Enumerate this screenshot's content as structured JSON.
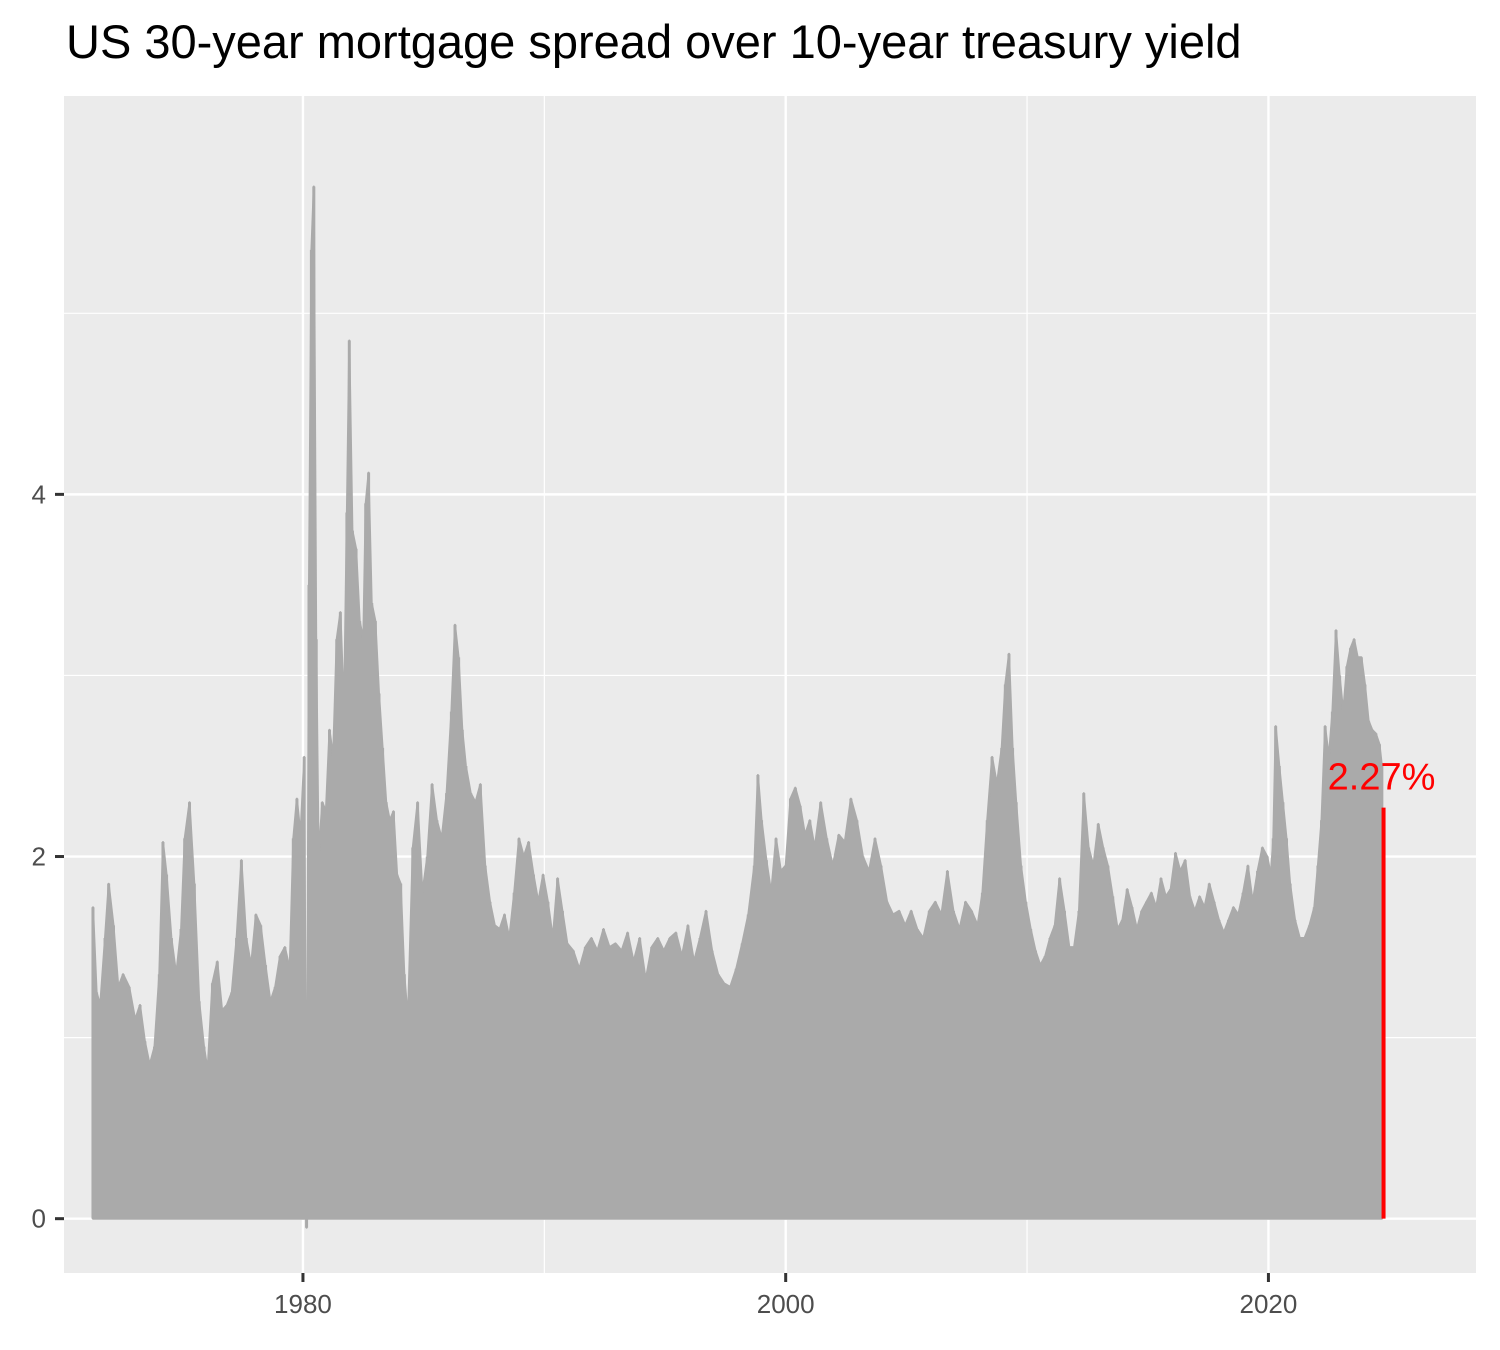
{
  "chart_data": {
    "type": "bar",
    "title": "US 30-year mortgage spread over 10-year treasury yield",
    "xlabel": "",
    "ylabel": "",
    "xlim": [
      1970.1,
      2028.6
    ],
    "ylim": [
      -0.3,
      6.2
    ],
    "grid": true,
    "legend": "none",
    "x_ticks": [
      1980,
      2000,
      2020
    ],
    "x_tick_labels": [
      "1980",
      "2000",
      "2020"
    ],
    "y_ticks": [
      0,
      2,
      4
    ],
    "y_tick_labels": [
      "0",
      "2",
      "4"
    ],
    "colors": {
      "panel": "#ebebeb",
      "grid": "#ffffff",
      "bars": "#aaaaaa",
      "highlight": "#ff0000",
      "ticks": "#333333"
    },
    "series": [
      {
        "values": [
          [
            1971.3,
            1.72
          ],
          [
            1971.45,
            1.25
          ],
          [
            1971.6,
            1.18
          ],
          [
            1971.8,
            1.55
          ],
          [
            1971.95,
            1.85
          ],
          [
            1972.15,
            1.62
          ],
          [
            1972.35,
            1.28
          ],
          [
            1972.55,
            1.35
          ],
          [
            1972.8,
            1.28
          ],
          [
            1973.05,
            1.1
          ],
          [
            1973.25,
            1.18
          ],
          [
            1973.45,
            0.98
          ],
          [
            1973.65,
            0.85
          ],
          [
            1973.85,
            0.95
          ],
          [
            1974.05,
            1.35
          ],
          [
            1974.2,
            2.08
          ],
          [
            1974.35,
            1.9
          ],
          [
            1974.55,
            1.55
          ],
          [
            1974.75,
            1.35
          ],
          [
            1974.95,
            1.6
          ],
          [
            1975.1,
            2.1
          ],
          [
            1975.3,
            2.3
          ],
          [
            1975.5,
            1.85
          ],
          [
            1975.7,
            1.2
          ],
          [
            1975.9,
            0.95
          ],
          [
            1976.05,
            0.82
          ],
          [
            1976.25,
            1.3
          ],
          [
            1976.45,
            1.42
          ],
          [
            1976.65,
            1.15
          ],
          [
            1976.85,
            1.18
          ],
          [
            1977.05,
            1.25
          ],
          [
            1977.25,
            1.55
          ],
          [
            1977.45,
            1.98
          ],
          [
            1977.65,
            1.55
          ],
          [
            1977.85,
            1.4
          ],
          [
            1978.05,
            1.68
          ],
          [
            1978.25,
            1.62
          ],
          [
            1978.45,
            1.4
          ],
          [
            1978.65,
            1.2
          ],
          [
            1978.85,
            1.28
          ],
          [
            1979.05,
            1.45
          ],
          [
            1979.25,
            1.5
          ],
          [
            1979.45,
            1.38
          ],
          [
            1979.6,
            2.1
          ],
          [
            1979.75,
            2.32
          ],
          [
            1979.9,
            2.12
          ],
          [
            1980.05,
            2.55
          ],
          [
            1980.15,
            -0.05
          ],
          [
            1980.25,
            3.5
          ],
          [
            1980.35,
            5.35
          ],
          [
            1980.45,
            5.7
          ],
          [
            1980.55,
            3.2
          ],
          [
            1980.65,
            2.0
          ],
          [
            1980.8,
            2.3
          ],
          [
            1980.95,
            2.25
          ],
          [
            1981.1,
            2.7
          ],
          [
            1981.25,
            2.55
          ],
          [
            1981.4,
            3.2
          ],
          [
            1981.55,
            3.35
          ],
          [
            1981.7,
            2.8
          ],
          [
            1981.82,
            3.9
          ],
          [
            1981.92,
            4.85
          ],
          [
            1982.05,
            3.8
          ],
          [
            1982.2,
            3.7
          ],
          [
            1982.35,
            3.3
          ],
          [
            1982.5,
            3.2
          ],
          [
            1982.6,
            3.95
          ],
          [
            1982.72,
            4.12
          ],
          [
            1982.85,
            3.4
          ],
          [
            1983.0,
            3.3
          ],
          [
            1983.15,
            2.9
          ],
          [
            1983.3,
            2.6
          ],
          [
            1983.45,
            2.3
          ],
          [
            1983.6,
            2.2
          ],
          [
            1983.75,
            2.25
          ],
          [
            1983.9,
            1.9
          ],
          [
            1984.05,
            1.85
          ],
          [
            1984.2,
            1.35
          ],
          [
            1984.35,
            1.1
          ],
          [
            1984.55,
            2.05
          ],
          [
            1984.75,
            2.3
          ],
          [
            1984.95,
            1.8
          ],
          [
            1985.15,
            2.0
          ],
          [
            1985.35,
            2.4
          ],
          [
            1985.55,
            2.2
          ],
          [
            1985.75,
            2.1
          ],
          [
            1985.95,
            2.35
          ],
          [
            1986.15,
            2.8
          ],
          [
            1986.3,
            3.28
          ],
          [
            1986.45,
            3.1
          ],
          [
            1986.6,
            2.7
          ],
          [
            1986.75,
            2.5
          ],
          [
            1986.95,
            2.35
          ],
          [
            1987.15,
            2.3
          ],
          [
            1987.35,
            2.4
          ],
          [
            1987.55,
            1.95
          ],
          [
            1987.75,
            1.75
          ],
          [
            1987.95,
            1.62
          ],
          [
            1988.15,
            1.6
          ],
          [
            1988.35,
            1.68
          ],
          [
            1988.55,
            1.55
          ],
          [
            1988.75,
            1.8
          ],
          [
            1988.95,
            2.1
          ],
          [
            1989.15,
            2.0
          ],
          [
            1989.35,
            2.08
          ],
          [
            1989.55,
            1.9
          ],
          [
            1989.75,
            1.75
          ],
          [
            1989.95,
            1.9
          ],
          [
            1990.15,
            1.75
          ],
          [
            1990.35,
            1.55
          ],
          [
            1990.55,
            1.88
          ],
          [
            1990.75,
            1.7
          ],
          [
            1990.95,
            1.52
          ],
          [
            1991.2,
            1.48
          ],
          [
            1991.45,
            1.38
          ],
          [
            1991.7,
            1.5
          ],
          [
            1991.95,
            1.55
          ],
          [
            1992.2,
            1.48
          ],
          [
            1992.45,
            1.6
          ],
          [
            1992.7,
            1.5
          ],
          [
            1992.95,
            1.52
          ],
          [
            1993.2,
            1.48
          ],
          [
            1993.45,
            1.58
          ],
          [
            1993.7,
            1.42
          ],
          [
            1993.95,
            1.55
          ],
          [
            1994.2,
            1.32
          ],
          [
            1994.45,
            1.5
          ],
          [
            1994.7,
            1.55
          ],
          [
            1994.95,
            1.48
          ],
          [
            1995.2,
            1.55
          ],
          [
            1995.45,
            1.58
          ],
          [
            1995.7,
            1.45
          ],
          [
            1995.95,
            1.62
          ],
          [
            1996.2,
            1.42
          ],
          [
            1996.45,
            1.55
          ],
          [
            1996.7,
            1.7
          ],
          [
            1996.95,
            1.48
          ],
          [
            1997.2,
            1.35
          ],
          [
            1997.45,
            1.3
          ],
          [
            1997.7,
            1.28
          ],
          [
            1997.95,
            1.38
          ],
          [
            1998.2,
            1.52
          ],
          [
            1998.45,
            1.68
          ],
          [
            1998.7,
            1.95
          ],
          [
            1998.85,
            2.45
          ],
          [
            1999.0,
            2.2
          ],
          [
            1999.2,
            1.98
          ],
          [
            1999.4,
            1.8
          ],
          [
            1999.6,
            2.1
          ],
          [
            1999.8,
            1.92
          ],
          [
            2000.0,
            1.95
          ],
          [
            2000.2,
            2.32
          ],
          [
            2000.4,
            2.38
          ],
          [
            2000.6,
            2.28
          ],
          [
            2000.8,
            2.12
          ],
          [
            2001.0,
            2.2
          ],
          [
            2001.2,
            2.05
          ],
          [
            2001.45,
            2.3
          ],
          [
            2001.7,
            2.1
          ],
          [
            2001.95,
            1.95
          ],
          [
            2002.2,
            2.12
          ],
          [
            2002.45,
            2.08
          ],
          [
            2002.7,
            2.32
          ],
          [
            2002.95,
            2.2
          ],
          [
            2003.2,
            2.0
          ],
          [
            2003.45,
            1.92
          ],
          [
            2003.7,
            2.1
          ],
          [
            2003.95,
            1.95
          ],
          [
            2004.2,
            1.75
          ],
          [
            2004.45,
            1.68
          ],
          [
            2004.7,
            1.7
          ],
          [
            2004.95,
            1.62
          ],
          [
            2005.2,
            1.7
          ],
          [
            2005.45,
            1.6
          ],
          [
            2005.7,
            1.55
          ],
          [
            2005.95,
            1.7
          ],
          [
            2006.2,
            1.75
          ],
          [
            2006.45,
            1.68
          ],
          [
            2006.7,
            1.92
          ],
          [
            2006.95,
            1.7
          ],
          [
            2007.2,
            1.6
          ],
          [
            2007.45,
            1.75
          ],
          [
            2007.7,
            1.7
          ],
          [
            2007.95,
            1.62
          ],
          [
            2008.15,
            1.8
          ],
          [
            2008.35,
            2.2
          ],
          [
            2008.55,
            2.55
          ],
          [
            2008.75,
            2.4
          ],
          [
            2008.95,
            2.6
          ],
          [
            2009.1,
            2.95
          ],
          [
            2009.25,
            3.12
          ],
          [
            2009.4,
            2.6
          ],
          [
            2009.55,
            2.3
          ],
          [
            2009.75,
            1.95
          ],
          [
            2009.95,
            1.75
          ],
          [
            2010.15,
            1.6
          ],
          [
            2010.35,
            1.48
          ],
          [
            2010.55,
            1.4
          ],
          [
            2010.75,
            1.45
          ],
          [
            2010.95,
            1.55
          ],
          [
            2011.15,
            1.62
          ],
          [
            2011.35,
            1.88
          ],
          [
            2011.55,
            1.7
          ],
          [
            2011.75,
            1.5
          ],
          [
            2011.95,
            1.5
          ],
          [
            2012.15,
            1.7
          ],
          [
            2012.35,
            2.35
          ],
          [
            2012.55,
            2.05
          ],
          [
            2012.75,
            1.95
          ],
          [
            2012.95,
            2.18
          ],
          [
            2013.15,
            2.05
          ],
          [
            2013.35,
            1.95
          ],
          [
            2013.55,
            1.78
          ],
          [
            2013.75,
            1.6
          ],
          [
            2013.95,
            1.65
          ],
          [
            2014.15,
            1.82
          ],
          [
            2014.35,
            1.72
          ],
          [
            2014.55,
            1.6
          ],
          [
            2014.75,
            1.7
          ],
          [
            2014.95,
            1.75
          ],
          [
            2015.15,
            1.8
          ],
          [
            2015.35,
            1.72
          ],
          [
            2015.55,
            1.88
          ],
          [
            2015.75,
            1.78
          ],
          [
            2015.95,
            1.82
          ],
          [
            2016.15,
            2.02
          ],
          [
            2016.35,
            1.92
          ],
          [
            2016.55,
            1.98
          ],
          [
            2016.75,
            1.78
          ],
          [
            2016.95,
            1.7
          ],
          [
            2017.15,
            1.78
          ],
          [
            2017.35,
            1.72
          ],
          [
            2017.55,
            1.85
          ],
          [
            2017.75,
            1.75
          ],
          [
            2017.95,
            1.65
          ],
          [
            2018.15,
            1.58
          ],
          [
            2018.35,
            1.65
          ],
          [
            2018.55,
            1.72
          ],
          [
            2018.75,
            1.68
          ],
          [
            2018.95,
            1.8
          ],
          [
            2019.15,
            1.95
          ],
          [
            2019.35,
            1.75
          ],
          [
            2019.55,
            1.92
          ],
          [
            2019.75,
            2.05
          ],
          [
            2019.95,
            2.0
          ],
          [
            2020.1,
            1.9
          ],
          [
            2020.2,
            2.1
          ],
          [
            2020.3,
            2.72
          ],
          [
            2020.45,
            2.5
          ],
          [
            2020.6,
            2.3
          ],
          [
            2020.75,
            2.1
          ],
          [
            2020.9,
            1.85
          ],
          [
            2021.1,
            1.65
          ],
          [
            2021.3,
            1.55
          ],
          [
            2021.5,
            1.55
          ],
          [
            2021.7,
            1.62
          ],
          [
            2021.9,
            1.72
          ],
          [
            2022.05,
            1.95
          ],
          [
            2022.2,
            2.2
          ],
          [
            2022.35,
            2.72
          ],
          [
            2022.5,
            2.55
          ],
          [
            2022.65,
            2.8
          ],
          [
            2022.8,
            3.25
          ],
          [
            2022.95,
            3.0
          ],
          [
            2023.1,
            2.8
          ],
          [
            2023.25,
            3.05
          ],
          [
            2023.4,
            3.15
          ],
          [
            2023.55,
            3.2
          ],
          [
            2023.7,
            3.1
          ],
          [
            2023.85,
            3.1
          ],
          [
            2024.0,
            2.95
          ],
          [
            2024.15,
            2.75
          ],
          [
            2024.3,
            2.7
          ],
          [
            2024.45,
            2.68
          ],
          [
            2024.6,
            2.62
          ],
          [
            2024.7,
            2.5
          ]
        ]
      }
    ],
    "highlight": {
      "x": 2024.77,
      "y": 2.27,
      "label": "2.27%"
    }
  }
}
